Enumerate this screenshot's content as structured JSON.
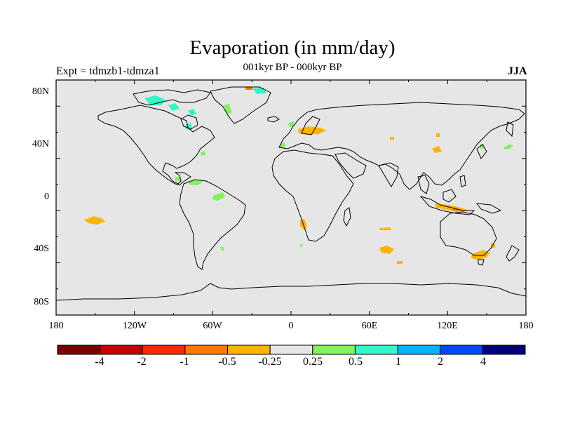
{
  "title": "Evaporation (in mm/day)",
  "subtitle": "001kyr BP - 000kyr BP",
  "left_note": "Expt = tdmzb1-tdmza1",
  "right_note": "JJA",
  "colors": {
    "ocean_background": "#e6e6e6",
    "coast": "#000000",
    "pos_0_25_0_5": "#82f25e",
    "pos_0_5_1": "#32f7c8",
    "neg_025_05": "#ffb400",
    "neg_05_1": "#ff7800"
  },
  "map": {
    "y_axis_labels": [
      "80N",
      "40N",
      "0",
      "40S",
      "80S"
    ],
    "x_axis_labels": [
      "180",
      "120W",
      "60W",
      "0",
      "60E",
      "120E",
      "180"
    ]
  },
  "colorbar": {
    "colors": [
      "#7d0000",
      "#c80000",
      "#ff2800",
      "#ff7800",
      "#ffb400",
      "#e6e6e6",
      "#82f25e",
      "#32f7c8",
      "#00b4ff",
      "#0046ff",
      "#000078"
    ],
    "labels": [
      "-4",
      "-2",
      "-1",
      "-0.5",
      "-0.25",
      "0.25",
      "0.5",
      "1",
      "2",
      "4"
    ]
  }
}
